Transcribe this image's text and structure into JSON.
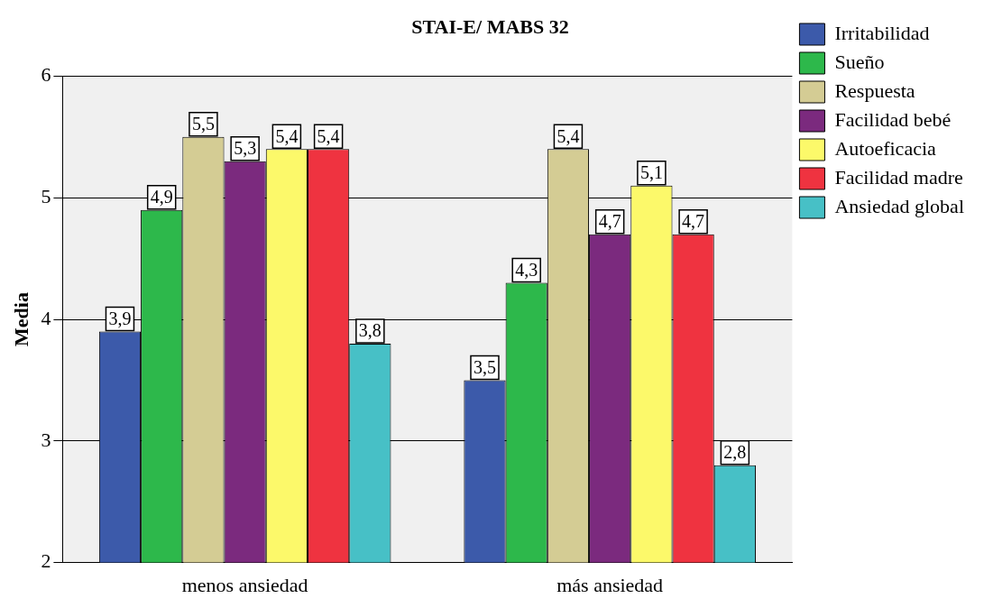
{
  "chart_data": {
    "type": "bar",
    "title": "STAI-E/ MABS 32",
    "ylabel": "Media",
    "categories": [
      "menos ansiedad",
      "más ansiedad"
    ],
    "series": [
      {
        "name": "Irritabilidad",
        "color": "#3c5aaa",
        "values": [
          3.9,
          3.5
        ],
        "value_labels": [
          "3,9",
          "3,5"
        ]
      },
      {
        "name": "Sueño",
        "color": "#2db84b",
        "values": [
          4.9,
          4.3
        ],
        "value_labels": [
          "4,9",
          "4,3"
        ]
      },
      {
        "name": "Respuesta",
        "color": "#d4cc94",
        "values": [
          5.5,
          5.4
        ],
        "value_labels": [
          "5,5",
          "5,4"
        ]
      },
      {
        "name": "Facilidad bebé",
        "color": "#7b2a7e",
        "values": [
          5.3,
          4.7
        ],
        "value_labels": [
          "5,3",
          "4,7"
        ]
      },
      {
        "name": "Autoeficacia",
        "color": "#fcf96a",
        "values": [
          5.4,
          5.1
        ],
        "value_labels": [
          "5,4",
          "5,1"
        ]
      },
      {
        "name": "Facilidad madre",
        "color": "#ef3340",
        "values": [
          5.4,
          4.7
        ],
        "value_labels": [
          "5,4",
          "4,7"
        ]
      },
      {
        "name": "Ansiedad global",
        "color": "#47c0c6",
        "values": [
          3.8,
          2.8
        ],
        "value_labels": [
          "3,8",
          "2,8"
        ]
      }
    ],
    "ylim": [
      2,
      6
    ],
    "yticks": [
      2,
      3,
      4,
      5,
      6
    ],
    "grid": "y",
    "legend": "top right"
  }
}
